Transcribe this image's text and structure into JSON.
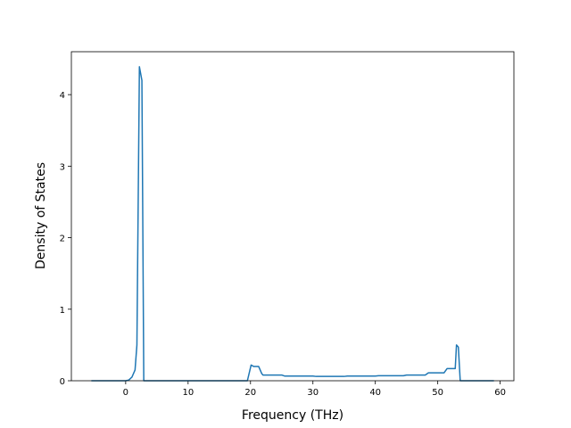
{
  "chart_data": {
    "type": "line",
    "xlabel": "Frequency (THz)",
    "ylabel": "Density of States",
    "x": [
      -5.5,
      0,
      0.5,
      1,
      1.5,
      1.8,
      2.2,
      2.6,
      2.9,
      19.5,
      20.1,
      20.5,
      21.3,
      21.8,
      22,
      25,
      25.5,
      30,
      30.5,
      35,
      35.5,
      40,
      40.5,
      44.5,
      45,
      48,
      48.5,
      51,
      51.5,
      52.8,
      53,
      53.3,
      53.6,
      59
    ],
    "series": [
      {
        "color": "#1f77b4",
        "values": [
          0,
          0,
          0.01,
          0.05,
          0.15,
          0.5,
          4.39,
          4.2,
          0,
          0,
          0.22,
          0.2,
          0.2,
          0.1,
          0.08,
          0.08,
          0.065,
          0.065,
          0.06,
          0.06,
          0.065,
          0.065,
          0.07,
          0.07,
          0.08,
          0.08,
          0.11,
          0.11,
          0.17,
          0.17,
          0.5,
          0.47,
          0,
          0
        ]
      }
    ],
    "xlim": [
      -8.7,
      62.2
    ],
    "ylim": [
      0,
      4.6
    ],
    "xticks": [
      0,
      10,
      20,
      30,
      40,
      50,
      60
    ],
    "yticks": [
      0,
      1,
      2,
      3,
      4
    ]
  }
}
